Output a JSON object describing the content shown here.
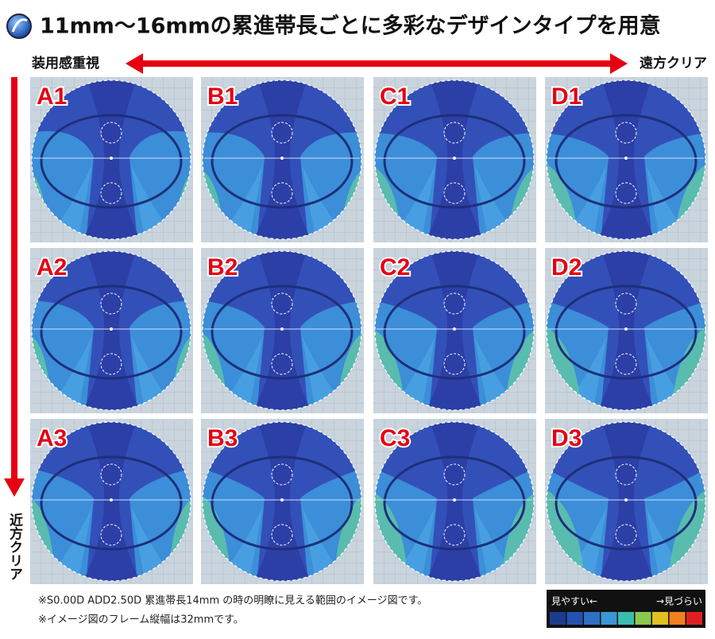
{
  "header": {
    "title": "11mm〜16mmの累進帯長ごとに多彩なデザインタイプを用意"
  },
  "axes": {
    "horizontal": {
      "left": "装用感重視",
      "right": "遠方クリア"
    },
    "vertical": {
      "bottom": "近方クリア"
    }
  },
  "grid": {
    "rows": [
      [
        "A1",
        "B1",
        "C1",
        "D1"
      ],
      [
        "A2",
        "B2",
        "C2",
        "D2"
      ],
      [
        "A3",
        "B3",
        "C3",
        "D3"
      ]
    ]
  },
  "notes": [
    "※S0.00D ADD2.50D 累進帯長14mm の時の明瞭に見える範囲のイメージ図です。",
    "※イメージ図のフレーム縦幅は32mmです。"
  ],
  "legend": {
    "left": "見やすい←",
    "right": "→見づらい"
  }
}
